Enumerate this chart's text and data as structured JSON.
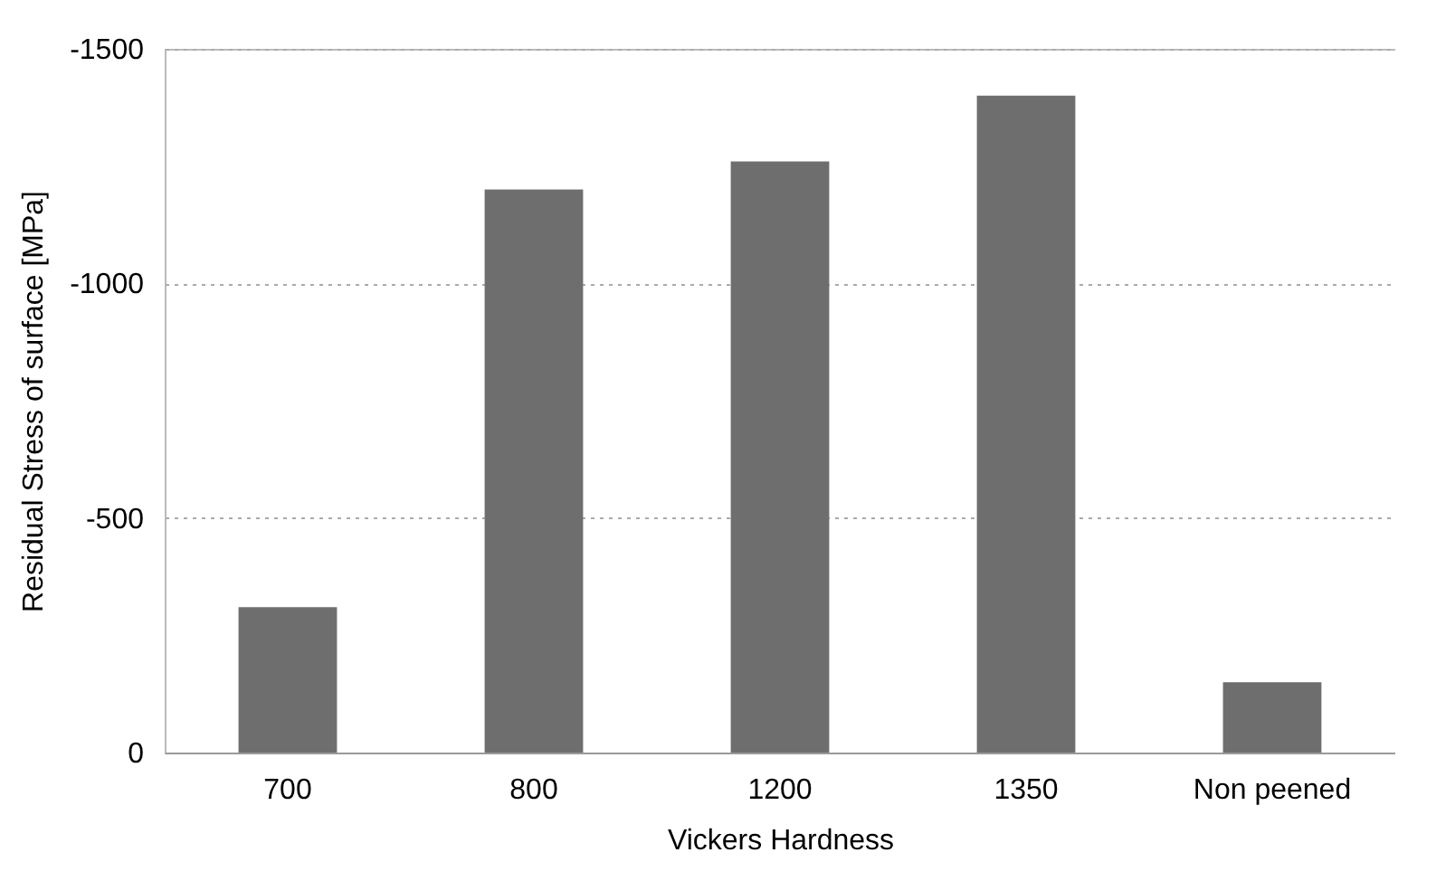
{
  "chart_data": {
    "type": "bar",
    "xlabel": "Vickers Hardness",
    "ylabel": "Residual Stress of surface [MPa]",
    "categories": [
      "700",
      "800",
      "1200",
      "1350",
      "Non peened"
    ],
    "values": [
      -310,
      -1200,
      -1260,
      -1400,
      -150
    ],
    "color": "#6e6e6e",
    "ylim": [
      0,
      -1500
    ],
    "yticks": [
      0,
      -500,
      -1000,
      -1500
    ],
    "grid": "y"
  }
}
